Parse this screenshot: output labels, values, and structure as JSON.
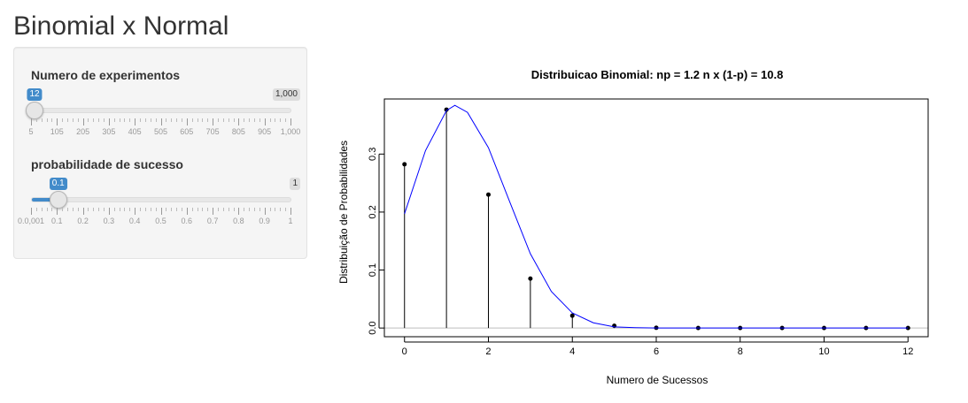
{
  "app": {
    "title": "Binomial x Normal"
  },
  "sidebar": {
    "n_slider": {
      "label": "Numero de experimentos",
      "value_text": "12",
      "max_text": "1,000",
      "min": 5,
      "max": 1000,
      "value": 12,
      "tick_labels": [
        "5",
        "105",
        "205",
        "305",
        "405",
        "505",
        "605",
        "705",
        "805",
        "905",
        "1,000"
      ]
    },
    "p_slider": {
      "label": "probabilidade de sucesso",
      "value_text": "0.1",
      "max_text": "1",
      "min": 0.001,
      "max": 1,
      "value": 0.1,
      "tick_labels": [
        "0.0,001",
        "0.1",
        "0.2",
        "0.3",
        "0.4",
        "0.5",
        "0.6",
        "0.7",
        "0.8",
        "0.9",
        "1"
      ]
    }
  },
  "colors": {
    "accent": "#428bca",
    "curve": "#0000ff",
    "points": "#000000"
  },
  "chart_data": {
    "type": "scatter",
    "title": "Distribuicao Binomial:  np = 1.2    n x (1-p) = 10.8",
    "xlabel": "Numero de Sucessos",
    "ylabel": "Distribuição de Probabilidades",
    "xlim": [
      -0.48,
      12.48
    ],
    "ylim": [
      -0.015,
      0.395
    ],
    "x_ticks": [
      0,
      2,
      4,
      6,
      8,
      10,
      12
    ],
    "y_ticks": [
      0.0,
      0.1,
      0.2,
      0.3
    ],
    "x_tick_labels": [
      "0",
      "2",
      "4",
      "6",
      "8",
      "10",
      "12"
    ],
    "y_tick_labels": [
      "0.0",
      "0.1",
      "0.2",
      "0.3"
    ],
    "grid": false,
    "series": [
      {
        "kind": "binomial-pmf",
        "x": [
          0,
          1,
          2,
          3,
          4,
          5,
          6,
          7,
          8,
          9,
          10,
          11,
          12
        ],
        "y": [
          0.2824,
          0.3766,
          0.2301,
          0.0852,
          0.0213,
          0.0038,
          0.0005,
          0.0,
          0.0,
          0.0,
          0.0,
          0.0,
          0.0
        ]
      },
      {
        "kind": "normal-density",
        "x": [
          0,
          0.5,
          1,
          1.2,
          1.5,
          2,
          2.5,
          3,
          3.5,
          4,
          4.5,
          5,
          5.5,
          6,
          7,
          8,
          10,
          12
        ],
        "y": [
          0.197,
          0.306,
          0.375,
          0.384,
          0.372,
          0.311,
          0.219,
          0.128,
          0.063,
          0.026,
          0.009,
          0.002,
          0.0007,
          0.0001,
          0.0,
          0.0,
          0.0,
          0.0
        ]
      }
    ]
  }
}
